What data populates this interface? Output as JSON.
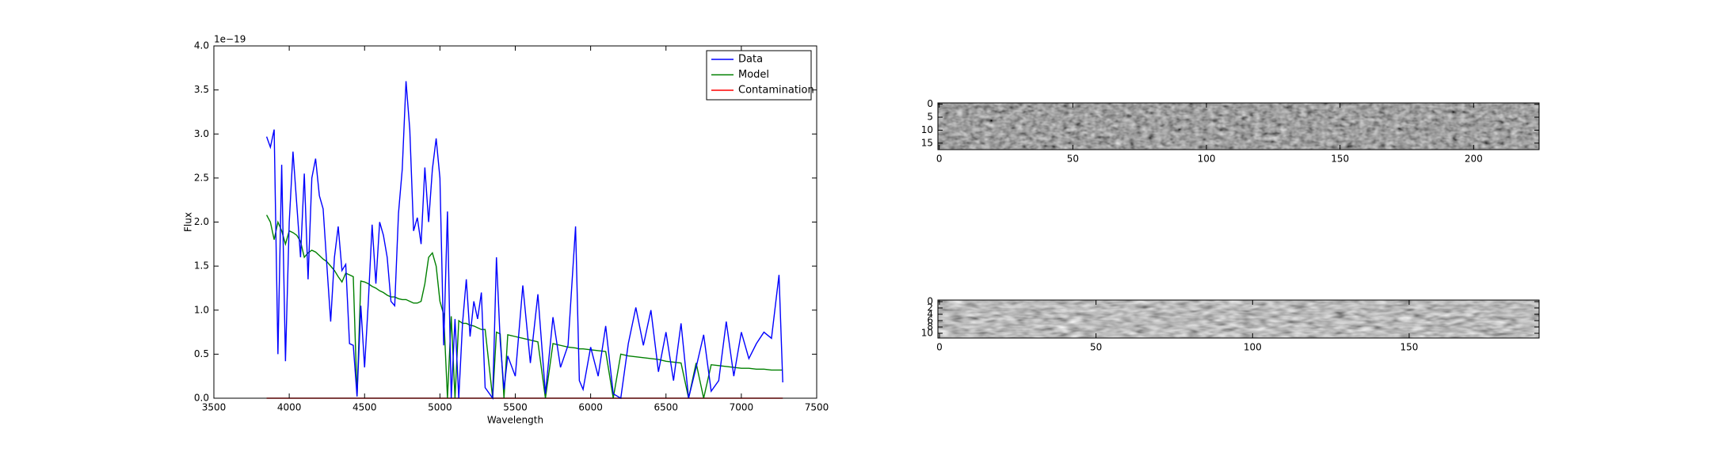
{
  "chart_data": [
    {
      "type": "line",
      "xlabel": "Wavelength",
      "ylabel": "Flux",
      "y_offset_label": "1e−19",
      "xlim": [
        3500,
        7500
      ],
      "xticks": [
        3500,
        4000,
        4500,
        5000,
        5500,
        6000,
        6500,
        7000,
        7500
      ],
      "ylim": [
        0,
        4
      ],
      "yticks": [
        {
          "value": 0,
          "label": "0.0"
        },
        0.5,
        {
          "value": 1,
          "label": "1.0"
        },
        1.5,
        {
          "value": 2,
          "label": "2.0"
        },
        2.5,
        {
          "value": 3,
          "label": "3.0"
        },
        3.5,
        {
          "value": 4,
          "label": "4.0"
        }
      ],
      "legend": "upper right",
      "x": [
        3850,
        3875,
        3900,
        3925,
        3950,
        3975,
        4000,
        4025,
        4050,
        4075,
        4100,
        4125,
        4150,
        4175,
        4200,
        4225,
        4250,
        4275,
        4300,
        4325,
        4350,
        4375,
        4400,
        4425,
        4450,
        4475,
        4500,
        4525,
        4550,
        4575,
        4600,
        4625,
        4650,
        4675,
        4700,
        4725,
        4750,
        4775,
        4800,
        4825,
        4850,
        4875,
        4900,
        4925,
        4950,
        4975,
        5000,
        5025,
        5050,
        5075,
        5100,
        5125,
        5150,
        5175,
        5200,
        5225,
        5250,
        5275,
        5300,
        5350,
        5375,
        5400,
        5425,
        5450,
        5500,
        5550,
        5600,
        5650,
        5700,
        5750,
        5800,
        5850,
        5900,
        5925,
        5950,
        6000,
        6050,
        6100,
        6150,
        6200,
        6250,
        6300,
        6350,
        6400,
        6450,
        6500,
        6550,
        6600,
        6650,
        6700,
        6750,
        6800,
        6850,
        6900,
        6950,
        7000,
        7050,
        7100,
        7150,
        7200,
        7250,
        7275
      ],
      "series": [
        {
          "name": "Data",
          "color": "#0000ff",
          "values": [
            2.97,
            2.85,
            3.05,
            0.5,
            2.65,
            0.42,
            2.0,
            2.8,
            2.2,
            1.6,
            2.55,
            1.35,
            2.5,
            2.72,
            2.3,
            2.15,
            1.5,
            0.87,
            1.6,
            1.95,
            1.45,
            1.52,
            0.62,
            0.6,
            0.02,
            1.05,
            0.35,
            1.1,
            1.97,
            1.3,
            2.0,
            1.85,
            1.6,
            1.1,
            1.05,
            2.1,
            2.6,
            3.6,
            3.05,
            1.9,
            2.05,
            1.75,
            2.62,
            2.0,
            2.6,
            2.95,
            2.5,
            0.6,
            2.12,
            0.0,
            0.9,
            0.0,
            0.85,
            1.35,
            0.7,
            1.1,
            0.9,
            1.2,
            0.12,
            0.0,
            1.6,
            0.65,
            0.1,
            0.48,
            0.25,
            1.28,
            0.4,
            1.18,
            0.05,
            0.92,
            0.35,
            0.6,
            1.95,
            0.2,
            0.1,
            0.58,
            0.25,
            0.82,
            0.05,
            0.0,
            0.62,
            1.03,
            0.6,
            1.0,
            0.3,
            0.75,
            0.2,
            0.85,
            0.0,
            0.35,
            0.72,
            0.08,
            0.2,
            0.87,
            0.25,
            0.75,
            0.45,
            0.62,
            0.75,
            0.68,
            1.4,
            0.18
          ]
        },
        {
          "name": "Model",
          "color": "#008000",
          "values": [
            2.08,
            2.0,
            1.8,
            2.0,
            1.9,
            1.75,
            1.9,
            1.88,
            1.85,
            1.78,
            1.6,
            1.65,
            1.68,
            1.66,
            1.62,
            1.58,
            1.55,
            1.5,
            1.45,
            1.38,
            1.32,
            1.42,
            1.4,
            1.38,
            0.02,
            1.33,
            1.32,
            1.3,
            1.27,
            1.25,
            1.22,
            1.2,
            1.17,
            1.15,
            1.15,
            1.13,
            1.12,
            1.12,
            1.1,
            1.08,
            1.08,
            1.1,
            1.3,
            1.6,
            1.65,
            1.5,
            1.1,
            0.95,
            0.0,
            0.93,
            0.0,
            0.88,
            0.85,
            0.85,
            0.83,
            0.82,
            0.8,
            0.78,
            0.78,
            0.0,
            0.75,
            0.73,
            0.0,
            0.72,
            0.7,
            0.68,
            0.66,
            0.64,
            0.0,
            0.62,
            0.6,
            0.58,
            0.57,
            0.56,
            0.56,
            0.55,
            0.54,
            0.53,
            0.0,
            0.5,
            0.48,
            0.47,
            0.46,
            0.45,
            0.44,
            0.42,
            0.41,
            0.4,
            0.0,
            0.4,
            0.0,
            0.38,
            0.37,
            0.36,
            0.35,
            0.34,
            0.34,
            0.33,
            0.33,
            0.32,
            0.32,
            0.32
          ]
        },
        {
          "name": "Contamination",
          "color": "#ff0000",
          "values": [
            0,
            0,
            0,
            0,
            0,
            0,
            0,
            0,
            0,
            0,
            0,
            0,
            0,
            0,
            0,
            0,
            0,
            0,
            0,
            0,
            0,
            0,
            0,
            0,
            0,
            0,
            0,
            0,
            0,
            0,
            0,
            0,
            0,
            0,
            0,
            0,
            0,
            0,
            0,
            0,
            0,
            0,
            0,
            0,
            0,
            0,
            0,
            0,
            0,
            0,
            0,
            0,
            0,
            0,
            0,
            0,
            0,
            0,
            0,
            0,
            0,
            0,
            0,
            0,
            0,
            0,
            0,
            0,
            0,
            0,
            0,
            0,
            0,
            0,
            0,
            0,
            0,
            0,
            0,
            0,
            0,
            0,
            0,
            0,
            0,
            0,
            0,
            0,
            0,
            0,
            0,
            0,
            0,
            0,
            0,
            0,
            0,
            0,
            0,
            0,
            0,
            0
          ]
        }
      ]
    },
    {
      "type": "image",
      "xlim": [
        -0.5,
        224.5
      ],
      "xticks": [
        0,
        50,
        100,
        150,
        200
      ],
      "ylim": [
        17.5,
        -0.5
      ],
      "yticks": [
        0,
        5,
        10,
        15
      ]
    },
    {
      "type": "image",
      "xlim": [
        -0.5,
        191.5
      ],
      "xticks": [
        0,
        50,
        100,
        150
      ],
      "ylim": [
        11.5,
        -0.5
      ],
      "yticks": [
        0,
        2,
        4,
        6,
        8,
        10
      ]
    }
  ]
}
